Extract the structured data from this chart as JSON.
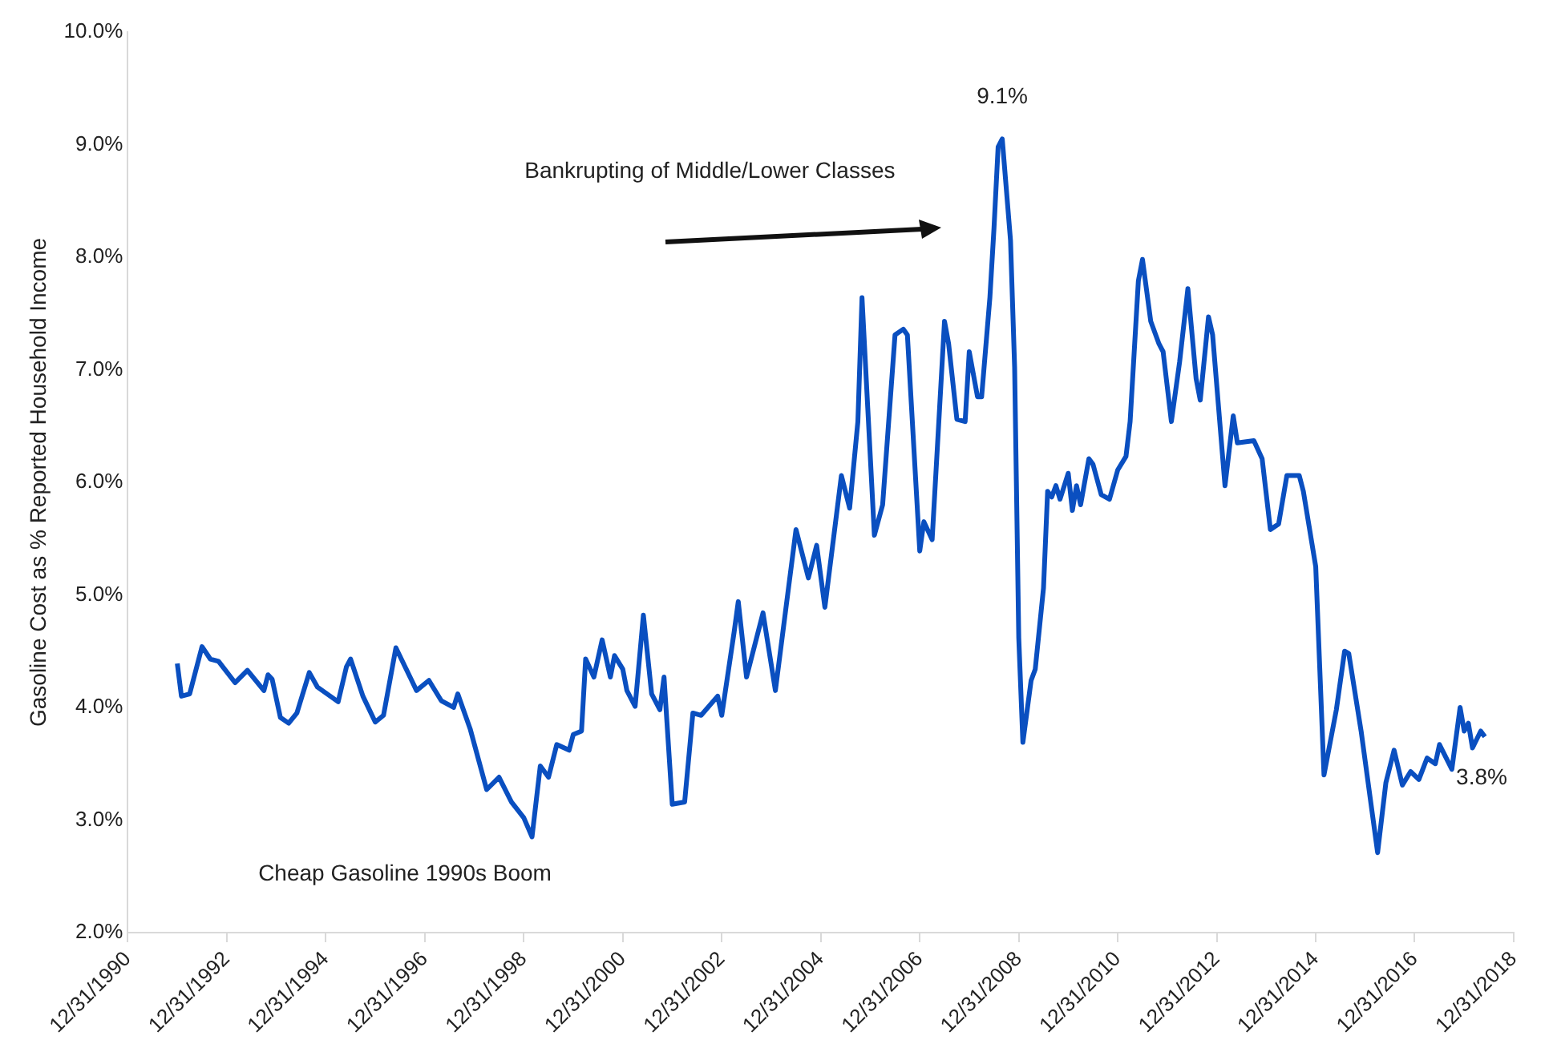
{
  "chart_data": {
    "type": "line",
    "ylabel": "Gasoline Cost as % Reported Household Income",
    "x": [
      "1992-01",
      "1992-02",
      "1992-04",
      "1992-07",
      "1992-09",
      "1992-11",
      "1993-03",
      "1993-06",
      "1993-10",
      "1993-11",
      "1993-12",
      "1994-02",
      "1994-04",
      "1994-06",
      "1994-09",
      "1994-11",
      "1995-04",
      "1995-06",
      "1995-07",
      "1995-10",
      "1996-01",
      "1996-03",
      "1996-06",
      "1996-11",
      "1997-02",
      "1997-05",
      "1997-08",
      "1997-09",
      "1997-12",
      "1998-04",
      "1998-07",
      "1998-10",
      "1999-01",
      "1999-03",
      "1999-05",
      "1999-07",
      "1999-09",
      "1999-12",
      "2000-01",
      "2000-03",
      "2000-04",
      "2000-06",
      "2000-08",
      "2000-10",
      "2000-11",
      "2001-01",
      "2001-02",
      "2001-04",
      "2001-06",
      "2001-08",
      "2001-10",
      "2001-11",
      "2002-01",
      "2002-04",
      "2002-06",
      "2002-08",
      "2002-12",
      "2003-01",
      "2003-04",
      "2003-05",
      "2003-07",
      "2003-11",
      "2004-02",
      "2004-05",
      "2004-07",
      "2004-10",
      "2004-12",
      "2005-02",
      "2005-06",
      "2005-08",
      "2005-10",
      "2005-11",
      "2006-02",
      "2006-04",
      "2006-07",
      "2006-09",
      "2006-10",
      "2007-01",
      "2007-02",
      "2007-04",
      "2007-07",
      "2007-08",
      "2007-10",
      "2007-12",
      "2008-01",
      "2008-03",
      "2008-04",
      "2008-06",
      "2008-07",
      "2008-08",
      "2008-09",
      "2008-11",
      "2008-12",
      "2009-01",
      "2009-02",
      "2009-04",
      "2009-05",
      "2009-07",
      "2009-08",
      "2009-09",
      "2009-10",
      "2009-11",
      "2010-01",
      "2010-02",
      "2010-03",
      "2010-04",
      "2010-06",
      "2010-07",
      "2010-09",
      "2010-11",
      "2011-01",
      "2011-03",
      "2011-04",
      "2011-06",
      "2011-07",
      "2011-09",
      "2011-11",
      "2011-12",
      "2012-02",
      "2012-04",
      "2012-06",
      "2012-08",
      "2012-09",
      "2012-11",
      "2012-12",
      "2013-03",
      "2013-05",
      "2013-06",
      "2013-10",
      "2013-12",
      "2014-02",
      "2014-04",
      "2014-06",
      "2014-09",
      "2014-10",
      "2015-01",
      "2015-03",
      "2015-06",
      "2015-08",
      "2015-09",
      "2015-12",
      "2016-04",
      "2016-06",
      "2016-08",
      "2016-10",
      "2016-12",
      "2017-02",
      "2017-04",
      "2017-06",
      "2017-07",
      "2017-10",
      "2017-12",
      "2018-01",
      "2018-02",
      "2018-03",
      "2018-05",
      "2018-06"
    ],
    "series": [
      {
        "color": "#0a4fc0",
        "values": [
          4.39,
          4.1,
          4.12,
          4.54,
          4.43,
          4.41,
          4.22,
          4.33,
          4.15,
          4.29,
          4.25,
          3.91,
          3.86,
          3.95,
          4.31,
          4.18,
          4.05,
          4.36,
          4.43,
          4.1,
          3.87,
          3.93,
          4.53,
          4.15,
          4.24,
          4.06,
          4.0,
          4.12,
          3.81,
          3.27,
          3.38,
          3.16,
          3.02,
          2.85,
          3.48,
          3.38,
          3.67,
          3.62,
          3.76,
          3.79,
          4.43,
          4.27,
          4.6,
          4.27,
          4.46,
          4.34,
          4.15,
          4.01,
          4.82,
          4.12,
          3.98,
          4.27,
          3.14,
          3.16,
          3.95,
          3.93,
          4.1,
          3.93,
          4.67,
          4.94,
          4.27,
          4.84,
          4.15,
          5.01,
          5.58,
          5.15,
          5.44,
          4.89,
          6.06,
          5.77,
          6.54,
          7.64,
          5.53,
          5.8,
          7.31,
          7.36,
          7.31,
          5.39,
          5.65,
          5.49,
          7.43,
          7.23,
          6.56,
          6.54,
          7.16,
          6.76,
          6.76,
          7.64,
          8.26,
          8.98,
          9.05,
          8.15,
          7.02,
          4.62,
          3.69,
          4.24,
          4.34,
          5.06,
          5.92,
          5.87,
          5.97,
          5.85,
          6.08,
          5.75,
          5.97,
          5.8,
          6.21,
          6.16,
          5.89,
          5.85,
          6.11,
          6.23,
          6.54,
          7.79,
          7.98,
          7.43,
          7.23,
          7.16,
          6.54,
          7.07,
          7.72,
          6.92,
          6.73,
          7.47,
          7.31,
          5.97,
          6.59,
          6.35,
          6.37,
          6.21,
          5.58,
          5.63,
          6.06,
          6.06,
          5.92,
          5.25,
          3.4,
          3.98,
          4.5,
          4.48,
          3.79,
          2.71,
          3.33,
          3.62,
          3.31,
          3.43,
          3.36,
          3.55,
          3.5,
          3.67,
          3.45,
          4.0,
          3.79,
          3.86,
          3.64,
          3.79,
          3.74
        ]
      }
    ],
    "xlim": [
      "1990-12-31",
      "2018-12-31"
    ],
    "xticks": [
      {
        "value": "1990-12-31",
        "label": "12/31/1990"
      },
      {
        "value": "1992-12-31",
        "label": "12/31/1992"
      },
      {
        "value": "1994-12-31",
        "label": "12/31/1994"
      },
      {
        "value": "1996-12-31",
        "label": "12/31/1996"
      },
      {
        "value": "1998-12-31",
        "label": "12/31/1998"
      },
      {
        "value": "2000-12-31",
        "label": "12/31/2000"
      },
      {
        "value": "2002-12-31",
        "label": "12/31/2002"
      },
      {
        "value": "2004-12-31",
        "label": "12/31/2004"
      },
      {
        "value": "2006-12-31",
        "label": "12/31/2006"
      },
      {
        "value": "2008-12-31",
        "label": "12/31/2008"
      },
      {
        "value": "2010-12-31",
        "label": "12/31/2010"
      },
      {
        "value": "2012-12-31",
        "label": "12/31/2012"
      },
      {
        "value": "2014-12-31",
        "label": "12/31/2014"
      },
      {
        "value": "2016-12-31",
        "label": "12/31/2016"
      },
      {
        "value": "2018-12-31",
        "label": "12/31/2018"
      }
    ],
    "ylim": [
      2,
      10
    ],
    "yticks": [
      {
        "value": 2,
        "label": "2.0%"
      },
      {
        "value": 3,
        "label": "3.0%"
      },
      {
        "value": 4,
        "label": "4.0%"
      },
      {
        "value": 5,
        "label": "5.0%"
      },
      {
        "value": 6,
        "label": "6.0%"
      },
      {
        "value": 7,
        "label": "7.0%"
      },
      {
        "value": 8,
        "label": "8.0%"
      },
      {
        "value": 9,
        "label": "9.0%"
      },
      {
        "value": 10,
        "label": "10.0%"
      }
    ],
    "grid": false,
    "legend": false,
    "marker": "none",
    "line_style": "solid",
    "annotations": [
      "Bankrupting of Middle/Lower Classes",
      "Cheap Gasoline 1990s Boom",
      {
        "text": "9.1%",
        "x": "2008-09",
        "y": 9.05
      },
      {
        "text": "3.8%",
        "x": "2018-06",
        "y": 3.74
      }
    ]
  }
}
